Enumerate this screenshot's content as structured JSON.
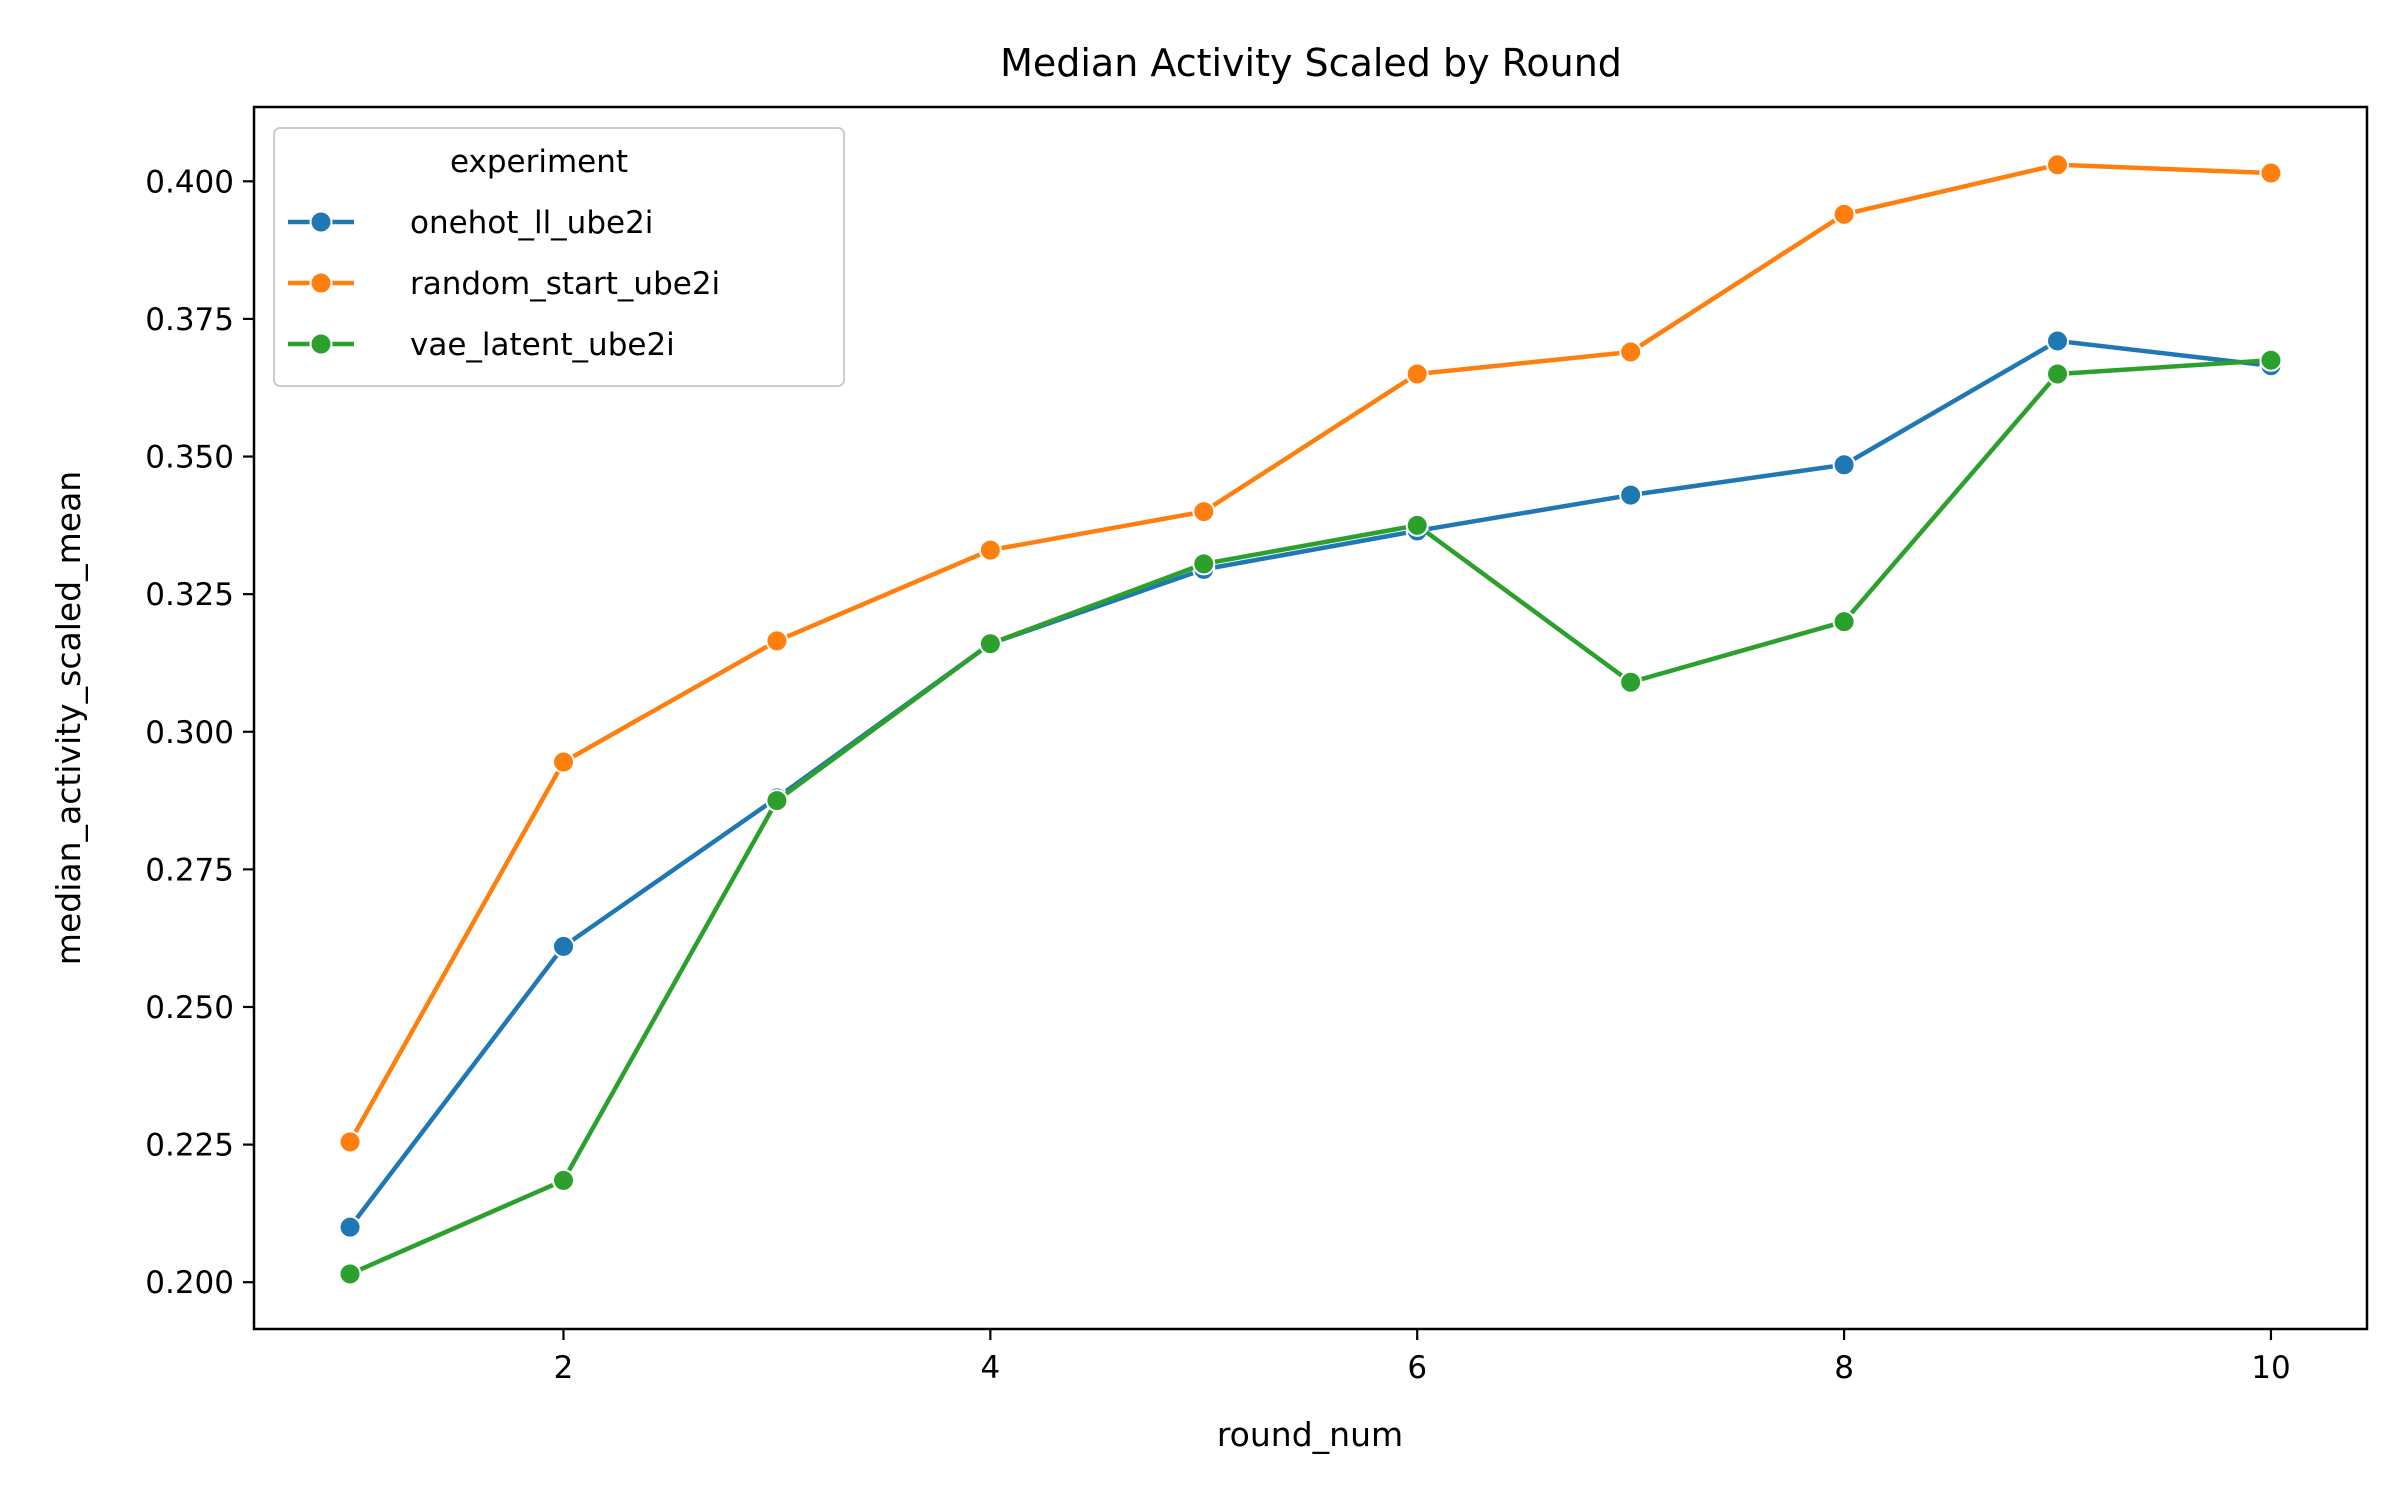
{
  "chart_data": {
    "type": "line",
    "title": "Median Activity Scaled by Round",
    "xlabel": "round_num",
    "ylabel": "median_activity_scaled_mean",
    "x": [
      1,
      2,
      3,
      4,
      5,
      6,
      7,
      8,
      9,
      10
    ],
    "xlim": [
      0.55,
      10.45
    ],
    "ylim": [
      0.1915,
      0.4135
    ],
    "xticks": [
      2,
      4,
      6,
      8,
      10
    ],
    "xtick_labels": [
      "2",
      "4",
      "6",
      "8",
      "10"
    ],
    "yticks": [
      0.2,
      0.225,
      0.25,
      0.275,
      0.3,
      0.325,
      0.35,
      0.375,
      0.4
    ],
    "ytick_labels": [
      "0.200",
      "0.225",
      "0.250",
      "0.275",
      "0.300",
      "0.325",
      "0.350",
      "0.375",
      "0.400"
    ],
    "grid": false,
    "legend": {
      "title": "experiment",
      "placement": "top-left"
    },
    "series": [
      {
        "name": "onehot_ll_ube2i",
        "color": "#1f77b4",
        "values": [
          0.21,
          0.261,
          0.288,
          0.316,
          0.3295,
          0.3365,
          0.343,
          0.3485,
          0.371,
          0.3665
        ]
      },
      {
        "name": "random_start_ube2i",
        "color": "#ff7f0e",
        "values": [
          0.2255,
          0.2945,
          0.3165,
          0.333,
          0.34,
          0.365,
          0.369,
          0.394,
          0.403,
          0.4015
        ]
      },
      {
        "name": "vae_latent_ube2i",
        "color": "#2ca02c",
        "values": [
          0.2015,
          0.2185,
          0.2875,
          0.316,
          0.3305,
          0.3375,
          0.309,
          0.32,
          0.365,
          0.3675
        ]
      }
    ]
  }
}
